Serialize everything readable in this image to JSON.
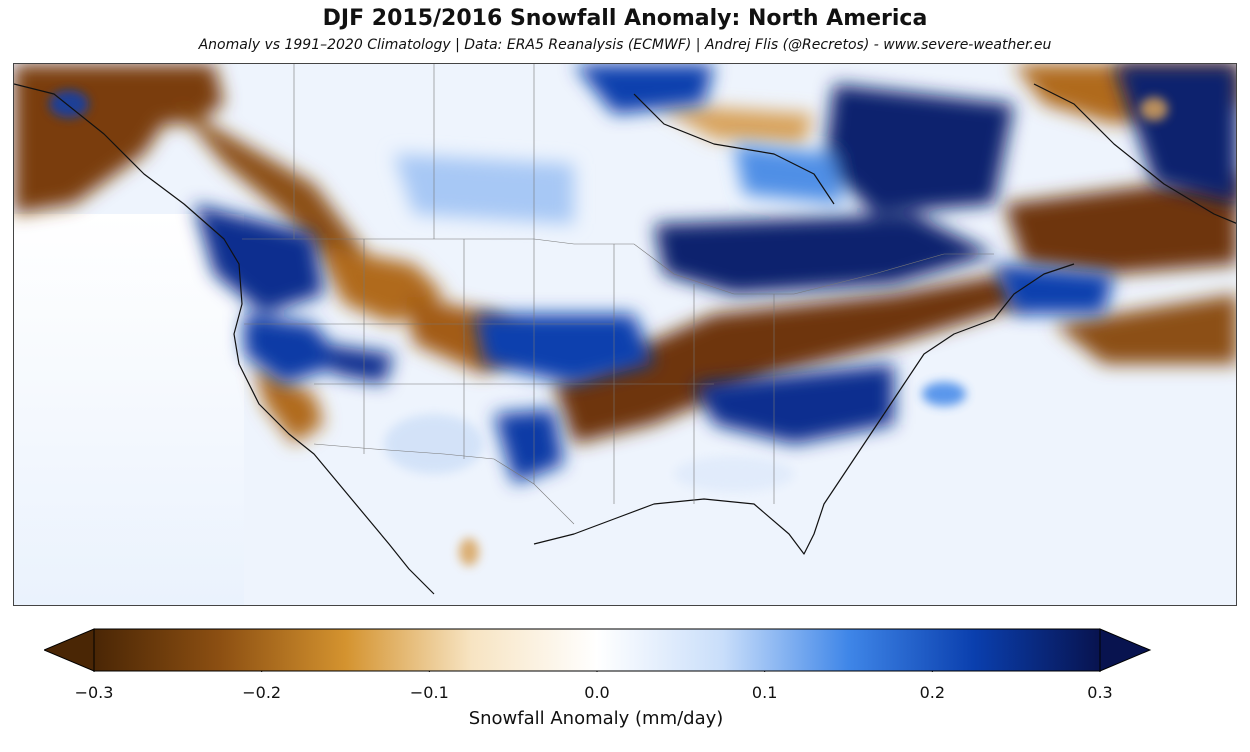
{
  "title": "DJF 2015/2016 Snowfall Anomaly: North America",
  "subtitle": "Anomaly vs 1991–2020 Climatology | Data: ERA5 Reanalysis (ECMWF) | Andrej Flis (@Recretos) - www.severe-weather.eu",
  "colorbar": {
    "label": "Snowfall Anomaly (mm/day)",
    "min": -0.3,
    "max": 0.3,
    "ticks": [
      "−0.3",
      "−0.2",
      "−0.1",
      "0.0",
      "0.1",
      "0.2",
      "0.3"
    ],
    "extend": "both",
    "colors": [
      "#4a2605",
      "#8c4f12",
      "#d4932f",
      "#f7e4c2",
      "#ffffff",
      "#c9defa",
      "#3f86e8",
      "#0a3fae",
      "#08134f"
    ]
  },
  "map": {
    "region": "North America",
    "projection": "Plate Carrée",
    "colors": {
      "ocean": "#eef4fd",
      "land_base": "#f3f7fd",
      "dry": "#7a3e0a",
      "dry_light": "#d8a25a",
      "wet": "#0b2f8f",
      "wet_light": "#4f8fe6",
      "coast": "#111111",
      "border": "#888888"
    }
  }
}
